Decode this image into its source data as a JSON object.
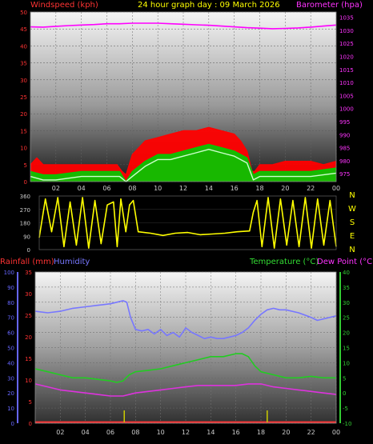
{
  "header": {
    "left": "Windspeed (kph)",
    "title": "24 hour graph day : 09 March 2026",
    "right": "Barometer (hpa)"
  },
  "mid_header": {
    "left1": "Rainfall (mm)",
    "left2": "Humidity",
    "right1": "Temperature (°C)",
    "right2": "Dew Point (°C)"
  },
  "colors": {
    "windspeed": "#ff0000",
    "gust_avg": "#00cc00",
    "wind_light": "#ccffcc",
    "barometer": "#ff00ff",
    "direction": "#ffff00",
    "rainfall": "#ff3333",
    "humidity": "#7777ff",
    "temperature": "#22cc22",
    "dewpoint": "#dd33dd",
    "axis": "#cccccc",
    "rain_axis": "#ff3333",
    "hum_axis": "#6666ff",
    "temp_axis": "#33cc33"
  },
  "chart_data": [
    {
      "type": "line",
      "name": "wind-baro",
      "xlabel": "",
      "x_ticks": [
        "02",
        "04",
        "06",
        "08",
        "10",
        "12",
        "14",
        "16",
        "18",
        "20",
        "22",
        "00"
      ],
      "xlim": [
        0,
        24
      ],
      "left_axis": {
        "label": "Windspeed (kph)",
        "ylim": [
          0,
          50
        ],
        "ticks": [
          0,
          5,
          10,
          15,
          20,
          25,
          30,
          35,
          40,
          45,
          50
        ]
      },
      "right_axis": {
        "label": "Barometer (hpa)",
        "ylim": [
          972,
          1037
        ],
        "ticks": [
          975,
          980,
          985,
          990,
          995,
          1000,
          1005,
          1010,
          1015,
          1020,
          1025,
          1030,
          1035
        ]
      },
      "series": [
        {
          "role": "windspeed",
          "axis": "left",
          "x": [
            0,
            0.5,
            1,
            2,
            3,
            4,
            5,
            6,
            6.8,
            7.2,
            7.5,
            8,
            9,
            10,
            11,
            12,
            13,
            14,
            15,
            16,
            16.5,
            17,
            17.4,
            17.6,
            18,
            19,
            20,
            21,
            22,
            23,
            24
          ],
          "y": [
            5,
            7,
            5,
            5,
            5,
            5,
            5,
            5,
            5,
            3,
            2,
            8,
            12,
            13,
            14,
            15,
            15,
            16,
            15,
            14,
            12,
            9,
            3,
            3,
            5,
            5,
            6,
            6,
            6,
            5,
            6
          ]
        },
        {
          "role": "gust_avg",
          "axis": "left",
          "x": [
            0,
            1,
            2,
            4,
            6,
            7,
            7.5,
            8,
            9,
            10,
            11,
            12,
            13,
            14,
            15,
            16,
            17,
            17.5,
            18,
            20,
            22,
            24
          ],
          "y": [
            3,
            2,
            2,
            3,
            3,
            3,
            0,
            3,
            6,
            8,
            8,
            9,
            10,
            11,
            10,
            9,
            7,
            2,
            3,
            3,
            3,
            4
          ]
        },
        {
          "role": "barometer",
          "axis": "right",
          "x": [
            0,
            1,
            2,
            3,
            4,
            5,
            6,
            7,
            8,
            9,
            10,
            11,
            12,
            13,
            14,
            15,
            16,
            17,
            18,
            19,
            20,
            21,
            22,
            23,
            24
          ],
          "y": [
            1031.3,
            1031.2,
            1031.5,
            1031.8,
            1032.0,
            1032.2,
            1032.5,
            1032.5,
            1032.7,
            1032.7,
            1032.7,
            1032.5,
            1032.3,
            1032.1,
            1031.9,
            1031.6,
            1031.3,
            1031.0,
            1030.8,
            1030.6,
            1030.7,
            1030.9,
            1031.2,
            1031.6,
            1032.0
          ]
        }
      ]
    },
    {
      "type": "line",
      "name": "wind-direction",
      "left_axis": {
        "ylim": [
          0,
          360
        ],
        "ticks": [
          0,
          90,
          180,
          270,
          360
        ]
      },
      "right_labels": [
        "N",
        "W",
        "S",
        "E",
        "N"
      ],
      "series": [
        {
          "role": "direction",
          "x": [
            0,
            0.5,
            1,
            1.5,
            2,
            2.5,
            3,
            3.5,
            4,
            4.5,
            5,
            5.5,
            6,
            6.3,
            6.6,
            7,
            7.3,
            7.6,
            8,
            9,
            10,
            11,
            12,
            13,
            14,
            15,
            16,
            17,
            17.3,
            17.6,
            18,
            18.5,
            19,
            19.5,
            20,
            20.5,
            21,
            21.5,
            22,
            22.5,
            23,
            23.5,
            24
          ],
          "y": [
            80,
            340,
            120,
            350,
            20,
            320,
            30,
            350,
            10,
            330,
            40,
            300,
            320,
            20,
            340,
            120,
            300,
            330,
            120,
            110,
            95,
            110,
            115,
            100,
            105,
            110,
            120,
            125,
            250,
            330,
            20,
            350,
            10,
            340,
            30,
            330,
            20,
            350,
            10,
            340,
            30,
            330,
            20
          ]
        }
      ]
    },
    {
      "type": "line",
      "name": "temp-humidity",
      "axes": {
        "humidity": {
          "ylim": [
            0,
            100
          ],
          "ticks": [
            0,
            10,
            20,
            30,
            40,
            50,
            60,
            70,
            80,
            90,
            100
          ]
        },
        "rainfall": {
          "ylim": [
            0,
            35
          ],
          "ticks": [
            0,
            5,
            10,
            15,
            20,
            25,
            30,
            35
          ]
        },
        "temperature": {
          "ylim": [
            -10,
            40
          ],
          "ticks": [
            -10,
            -5,
            0,
            5,
            10,
            15,
            20,
            25,
            30,
            35,
            40
          ]
        }
      },
      "series": [
        {
          "role": "humidity",
          "axis": "humidity",
          "x": [
            0,
            1,
            2,
            3,
            4,
            5,
            6,
            6.5,
            7,
            7.3,
            7.6,
            8,
            8.5,
            9,
            9.5,
            10,
            10.5,
            11,
            11.5,
            12,
            12.5,
            13,
            13.5,
            14,
            14.5,
            15,
            15.5,
            16,
            16.5,
            17,
            17.5,
            18,
            18.5,
            19,
            19.5,
            20,
            21,
            22,
            22.5,
            23,
            24
          ],
          "y": [
            74,
            73,
            74,
            76,
            77,
            78,
            79,
            80,
            81,
            80,
            70,
            62,
            61,
            62,
            59,
            62,
            58,
            60,
            57,
            63,
            60,
            58,
            56,
            57,
            56,
            56,
            57,
            58,
            60,
            63,
            68,
            72,
            75,
            76,
            75,
            75,
            73,
            70,
            68,
            69,
            71
          ]
        },
        {
          "role": "temperature",
          "axis": "temperature",
          "x": [
            0,
            1,
            2,
            3,
            4,
            5,
            6,
            6.5,
            7,
            7.5,
            8,
            9,
            10,
            11,
            12,
            13,
            14,
            15,
            16,
            16.5,
            17,
            17.5,
            18,
            19,
            20,
            21,
            22,
            23,
            24
          ],
          "y": [
            8,
            7,
            6,
            5,
            5,
            4.5,
            4,
            3.5,
            4,
            6,
            7,
            7.5,
            8,
            9,
            10,
            11,
            12,
            12,
            13,
            13,
            12,
            9,
            7,
            6,
            5,
            5,
            5.5,
            5,
            5
          ]
        },
        {
          "role": "dewpoint",
          "axis": "temperature",
          "x": [
            0,
            1,
            2,
            3,
            4,
            5,
            6,
            7,
            8,
            9,
            10,
            11,
            12,
            13,
            14,
            15,
            16,
            17,
            18,
            19,
            20,
            21,
            22,
            23,
            24
          ],
          "y": [
            3,
            2,
            1,
            0.5,
            0,
            -0.5,
            -1,
            -1,
            0,
            0.5,
            1,
            1.5,
            2,
            2.5,
            2.5,
            2.5,
            2.5,
            3,
            3,
            2,
            1.5,
            1,
            0.5,
            0,
            -0.5
          ]
        },
        {
          "role": "rainfall",
          "axis": "rainfall",
          "x": [
            0,
            24
          ],
          "y": [
            0,
            0
          ]
        }
      ],
      "rain_ticks_x": [
        7.1,
        18.5
      ]
    }
  ]
}
